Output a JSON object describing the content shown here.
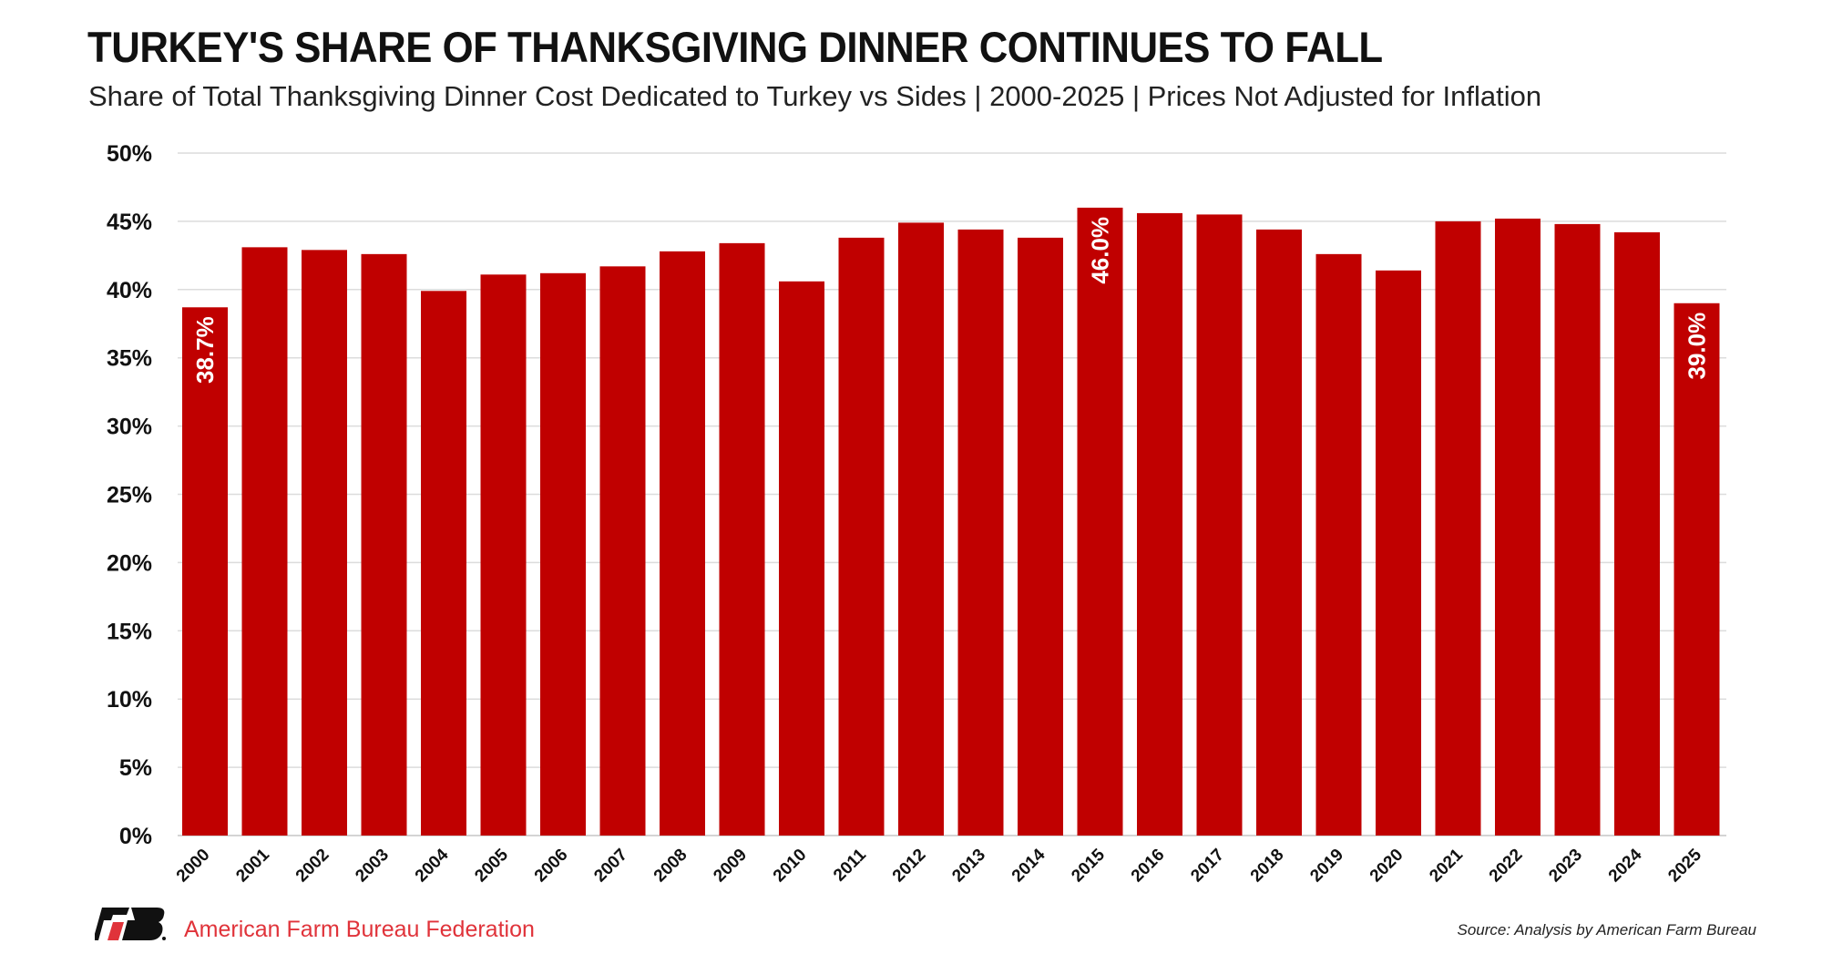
{
  "chart_data": {
    "type": "bar",
    "title": "TURKEY'S SHARE OF THANKSGIVING DINNER CONTINUES TO FALL",
    "subtitle": "Share of Total Thanksgiving Dinner Cost Dedicated to Turkey vs Sides | 2000-2025 | Prices Not Adjusted for Inflation",
    "categories": [
      "2000",
      "2001",
      "2002",
      "2003",
      "2004",
      "2005",
      "2006",
      "2007",
      "2008",
      "2009",
      "2010",
      "2011",
      "2012",
      "2013",
      "2014",
      "2015",
      "2016",
      "2017",
      "2018",
      "2019",
      "2020",
      "2021",
      "2022",
      "2023",
      "2024",
      "2025"
    ],
    "values": [
      38.7,
      43.1,
      42.9,
      42.6,
      39.9,
      41.1,
      41.2,
      41.7,
      42.8,
      43.4,
      40.6,
      43.8,
      44.9,
      44.4,
      43.8,
      46.0,
      45.6,
      45.5,
      44.4,
      42.6,
      41.4,
      45.0,
      45.2,
      44.8,
      44.2,
      39.0
    ],
    "data_labels": {
      "2000": "38.7%",
      "2015": "46.0%",
      "2025": "39.0%"
    },
    "ylim": [
      0,
      50
    ],
    "yticks": [
      "0%",
      "5%",
      "10%",
      "15%",
      "20%",
      "25%",
      "30%",
      "35%",
      "40%",
      "45%",
      "50%"
    ],
    "grid": true,
    "bar_color": "#c00000",
    "xlabel": "",
    "ylabel": ""
  },
  "footer": {
    "organization": "American Farm Bureau Federation",
    "source": "Source: Analysis by American Farm Bureau",
    "logo_text": "FB",
    "brand_color": "#e0333a"
  }
}
